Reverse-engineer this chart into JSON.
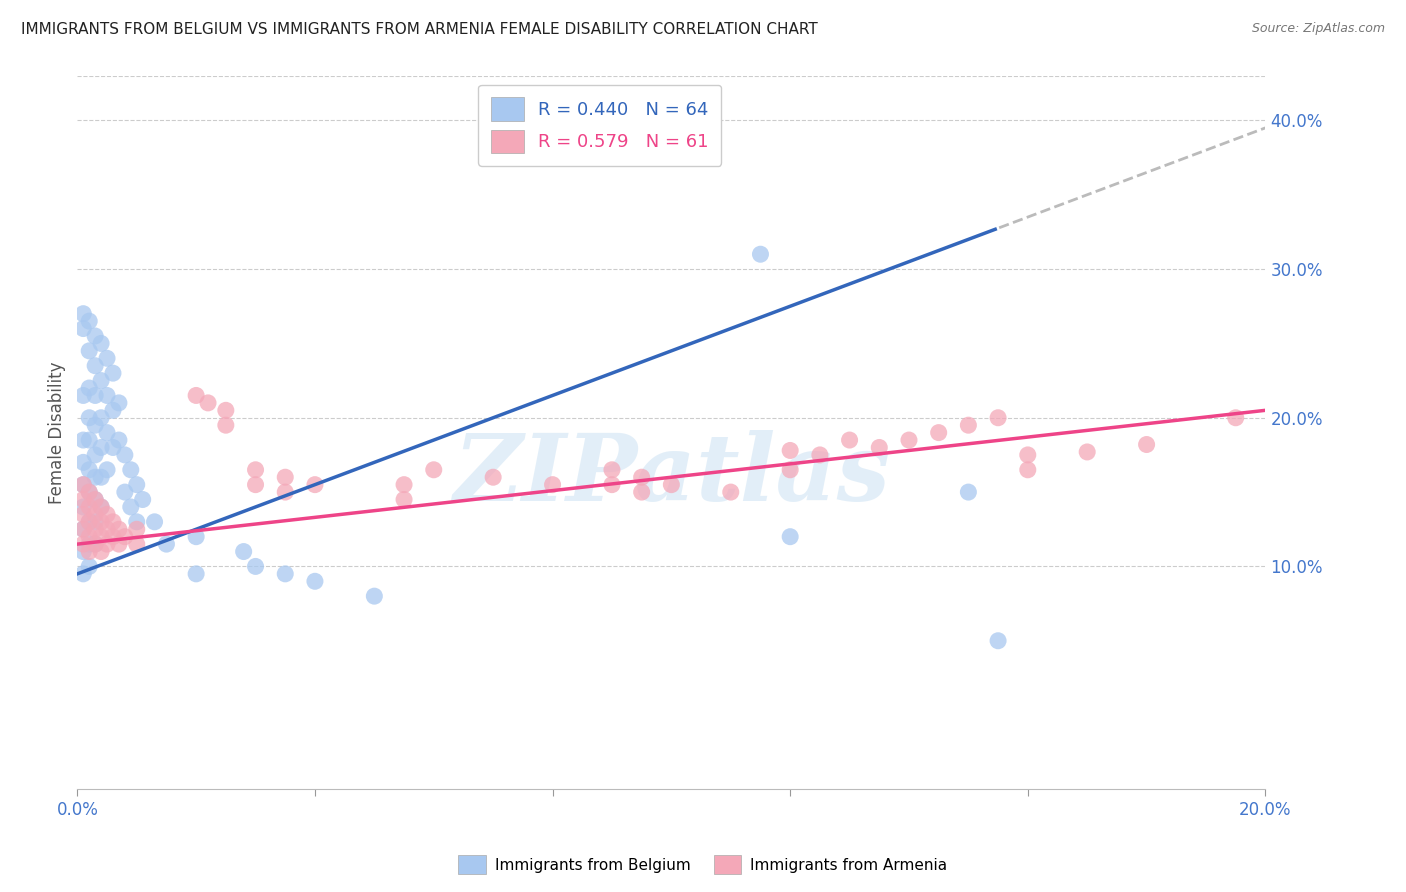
{
  "title": "IMMIGRANTS FROM BELGIUM VS IMMIGRANTS FROM ARMENIA FEMALE DISABILITY CORRELATION CHART",
  "source": "Source: ZipAtlas.com",
  "ylabel": "Female Disability",
  "right_yticks": [
    "10.0%",
    "20.0%",
    "30.0%",
    "40.0%"
  ],
  "right_ytick_vals": [
    0.1,
    0.2,
    0.3,
    0.4
  ],
  "xlim": [
    0.0,
    0.2
  ],
  "ylim": [
    -0.05,
    0.43
  ],
  "legend_belgium_R": "0.440",
  "legend_belgium_N": "64",
  "legend_armenia_R": "0.579",
  "legend_armenia_N": "61",
  "belgium_color": "#A8C8F0",
  "armenia_color": "#F4A8B8",
  "belgium_line_color": "#3366BB",
  "armenia_line_color": "#EE4488",
  "belgium_line_x0": 0.0,
  "belgium_line_y0": 0.095,
  "belgium_line_x1": 0.2,
  "belgium_line_y1": 0.395,
  "belgium_dash_cutoff": 0.155,
  "armenia_line_x0": 0.0,
  "armenia_line_y0": 0.115,
  "armenia_line_x1": 0.2,
  "armenia_line_y1": 0.205,
  "belgium_scatter_x": [
    0.001,
    0.001,
    0.001,
    0.001,
    0.001,
    0.001,
    0.001,
    0.001,
    0.001,
    0.001,
    0.002,
    0.002,
    0.002,
    0.002,
    0.002,
    0.002,
    0.002,
    0.002,
    0.002,
    0.002,
    0.003,
    0.003,
    0.003,
    0.003,
    0.003,
    0.003,
    0.003,
    0.003,
    0.003,
    0.004,
    0.004,
    0.004,
    0.004,
    0.004,
    0.004,
    0.005,
    0.005,
    0.005,
    0.005,
    0.006,
    0.006,
    0.006,
    0.007,
    0.007,
    0.008,
    0.008,
    0.009,
    0.009,
    0.01,
    0.01,
    0.011,
    0.013,
    0.015,
    0.02,
    0.02,
    0.028,
    0.03,
    0.035,
    0.04,
    0.05,
    0.115,
    0.12,
    0.15,
    0.155
  ],
  "belgium_scatter_y": [
    0.27,
    0.26,
    0.215,
    0.185,
    0.17,
    0.155,
    0.14,
    0.125,
    0.11,
    0.095,
    0.265,
    0.245,
    0.22,
    0.2,
    0.185,
    0.165,
    0.15,
    0.13,
    0.115,
    0.1,
    0.255,
    0.235,
    0.215,
    0.195,
    0.175,
    0.16,
    0.145,
    0.13,
    0.115,
    0.25,
    0.225,
    0.2,
    0.18,
    0.16,
    0.14,
    0.24,
    0.215,
    0.19,
    0.165,
    0.23,
    0.205,
    0.18,
    0.21,
    0.185,
    0.175,
    0.15,
    0.165,
    0.14,
    0.155,
    0.13,
    0.145,
    0.13,
    0.115,
    0.12,
    0.095,
    0.11,
    0.1,
    0.095,
    0.09,
    0.08,
    0.31,
    0.12,
    0.15,
    0.05
  ],
  "armenia_scatter_x": [
    0.001,
    0.001,
    0.001,
    0.001,
    0.001,
    0.002,
    0.002,
    0.002,
    0.002,
    0.002,
    0.003,
    0.003,
    0.003,
    0.003,
    0.004,
    0.004,
    0.004,
    0.004,
    0.005,
    0.005,
    0.005,
    0.006,
    0.006,
    0.007,
    0.007,
    0.008,
    0.01,
    0.01,
    0.02,
    0.022,
    0.025,
    0.025,
    0.03,
    0.03,
    0.035,
    0.035,
    0.04,
    0.055,
    0.055,
    0.06,
    0.07,
    0.08,
    0.09,
    0.09,
    0.095,
    0.095,
    0.1,
    0.11,
    0.12,
    0.12,
    0.125,
    0.13,
    0.135,
    0.14,
    0.145,
    0.15,
    0.155,
    0.16,
    0.16,
    0.17,
    0.18,
    0.195
  ],
  "armenia_scatter_y": [
    0.155,
    0.145,
    0.135,
    0.125,
    0.115,
    0.15,
    0.14,
    0.13,
    0.12,
    0.11,
    0.145,
    0.135,
    0.125,
    0.115,
    0.14,
    0.13,
    0.12,
    0.11,
    0.135,
    0.125,
    0.115,
    0.13,
    0.12,
    0.125,
    0.115,
    0.12,
    0.125,
    0.115,
    0.215,
    0.21,
    0.205,
    0.195,
    0.165,
    0.155,
    0.16,
    0.15,
    0.155,
    0.155,
    0.145,
    0.165,
    0.16,
    0.155,
    0.165,
    0.155,
    0.16,
    0.15,
    0.155,
    0.15,
    0.178,
    0.165,
    0.175,
    0.185,
    0.18,
    0.185,
    0.19,
    0.195,
    0.2,
    0.175,
    0.165,
    0.177,
    0.182,
    0.2
  ],
  "watermark_text": "ZIPatlas",
  "watermark_color": "#D0E4F4",
  "background_color": "#FFFFFF",
  "grid_color": "#CCCCCC"
}
